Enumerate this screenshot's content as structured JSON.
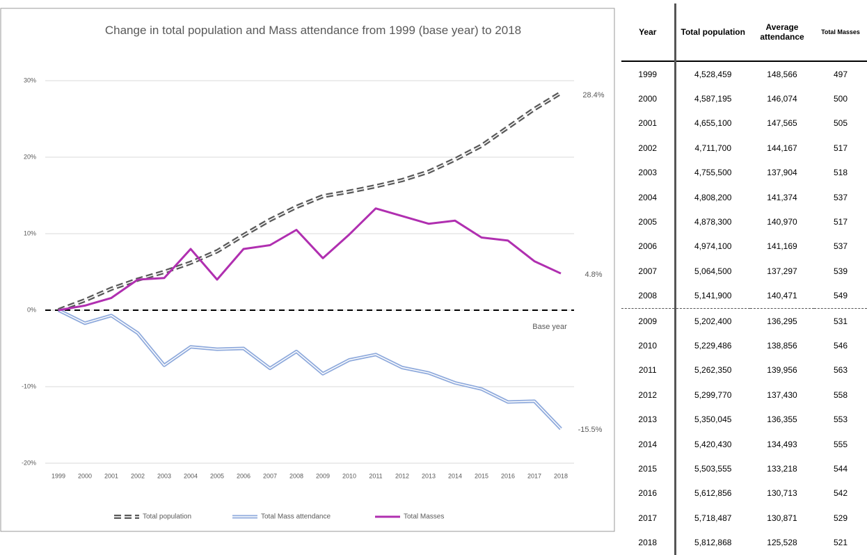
{
  "chart_data": {
    "type": "line",
    "title": "Change in total population and Mass attendance from 1999 (base year) to 2018",
    "categories": [
      "1999",
      "2000",
      "2001",
      "2002",
      "2003",
      "2004",
      "2005",
      "2006",
      "2007",
      "2008",
      "2009",
      "2010",
      "2011",
      "2012",
      "2013",
      "2014",
      "2015",
      "2016",
      "2017",
      "2018"
    ],
    "series": [
      {
        "name": "Total population",
        "color": "#595959",
        "values": [
          0,
          1.3,
          2.8,
          4.0,
          5.0,
          6.2,
          7.7,
          9.8,
          11.8,
          13.5,
          14.9,
          15.5,
          16.2,
          17.0,
          18.1,
          19.7,
          21.5,
          23.9,
          26.3,
          28.4
        ]
      },
      {
        "name": "Total Mass attendance",
        "color": "#8faadc",
        "values": [
          0,
          -1.7,
          -0.7,
          -3.0,
          -7.2,
          -4.8,
          -5.1,
          -5.0,
          -7.6,
          -5.4,
          -8.3,
          -6.5,
          -5.8,
          -7.5,
          -8.2,
          -9.5,
          -10.3,
          -12.0,
          -11.9,
          -15.5
        ]
      },
      {
        "name": "Total Masses",
        "color": "#b02fb0",
        "values": [
          0,
          0.6,
          1.6,
          4.0,
          4.2,
          8.0,
          4.0,
          8.0,
          8.5,
          10.5,
          6.8,
          9.9,
          13.3,
          12.3,
          11.3,
          11.7,
          9.5,
          9.1,
          6.4,
          4.8
        ]
      }
    ],
    "ylim": [
      -20,
      30
    ],
    "yticks": [
      {
        "value": -20,
        "label": "-20%"
      },
      {
        "value": -10,
        "label": "-10%"
      },
      {
        "value": 0,
        "label": "0%"
      },
      {
        "value": 10,
        "label": "10%"
      },
      {
        "value": 20,
        "label": "20%"
      },
      {
        "value": 30,
        "label": "30%"
      }
    ],
    "grid": true,
    "annotations": [
      "28.4%",
      "4.8%",
      "-15.5%",
      "Base year"
    ]
  },
  "table": {
    "header": [
      "Year",
      "Total population",
      "Average attendance",
      "Total Masses"
    ],
    "rows": [
      [
        "1999",
        "4,528,459",
        "148,566",
        "497"
      ],
      [
        "2000",
        "4,587,195",
        "146,074",
        "500"
      ],
      [
        "2001",
        "4,655,100",
        "147,565",
        "505"
      ],
      [
        "2002",
        "4,711,700",
        "144,167",
        "517"
      ],
      [
        "2003",
        "4,755,500",
        "137,904",
        "518"
      ],
      [
        "2004",
        "4,808,200",
        "141,374",
        "537"
      ],
      [
        "2005",
        "4,878,300",
        "140,970",
        "517"
      ],
      [
        "2006",
        "4,974,100",
        "141,169",
        "537"
      ],
      [
        "2007",
        "5,064,500",
        "137,297",
        "539"
      ],
      [
        "2008",
        "5,141,900",
        "140,471",
        "549"
      ],
      [
        "2009",
        "5,202,400",
        "136,295",
        "531"
      ],
      [
        "2010",
        "5,229,486",
        "138,856",
        "546"
      ],
      [
        "2011",
        "5,262,350",
        "139,956",
        "563"
      ],
      [
        "2012",
        "5,299,770",
        "137,430",
        "558"
      ],
      [
        "2013",
        "5,350,045",
        "136,355",
        "553"
      ],
      [
        "2014",
        "5,420,430",
        "134,493",
        "555"
      ],
      [
        "2015",
        "5,503,555",
        "133,218",
        "544"
      ],
      [
        "2016",
        "5,612,856",
        "130,713",
        "542"
      ],
      [
        "2017",
        "5,718,487",
        "130,871",
        "529"
      ],
      [
        "2018",
        "5,812,868",
        "125,528",
        "521"
      ]
    ]
  }
}
